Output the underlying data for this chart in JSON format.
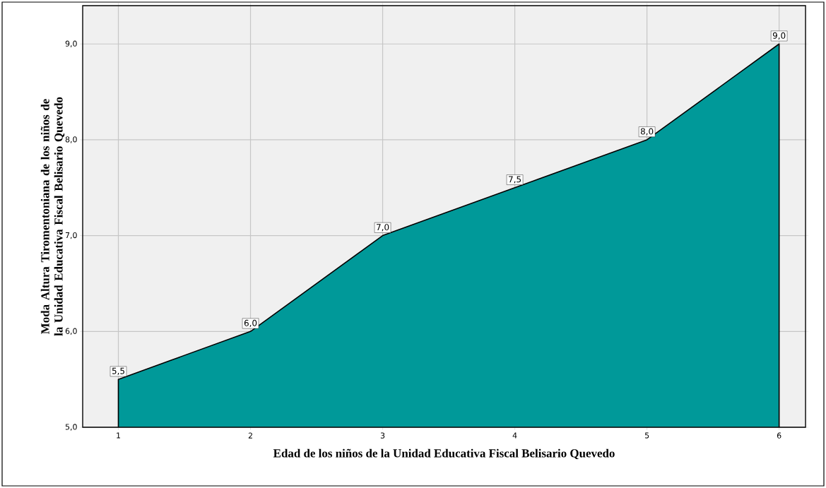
{
  "chart_data": {
    "type": "area",
    "xlabel": "Edad de los niños de la Unidad Educativa Fiscal Belisario Quevedo",
    "ylabel": "Moda Altura Tiromentoniana de los niños de la Unidad Educativa Fiscal Belisario Quevedo",
    "categories": [
      "1",
      "2",
      "3",
      "4",
      "5",
      "6"
    ],
    "values": [
      5.5,
      6.0,
      7.0,
      7.5,
      8.0,
      9.0
    ],
    "value_labels": [
      "5,5",
      "6,0",
      "7,0",
      "7,5",
      "8,0",
      "9,0"
    ],
    "color": "#009999",
    "ylim": [
      5,
      9.4
    ],
    "yticks": [
      {
        "value": 5,
        "label": "5,0"
      },
      {
        "value": 6,
        "label": "6,0"
      },
      {
        "value": 7,
        "label": "7,0"
      },
      {
        "value": 8,
        "label": "8,0"
      },
      {
        "value": 9,
        "label": "9,0"
      }
    ],
    "grid": true
  }
}
